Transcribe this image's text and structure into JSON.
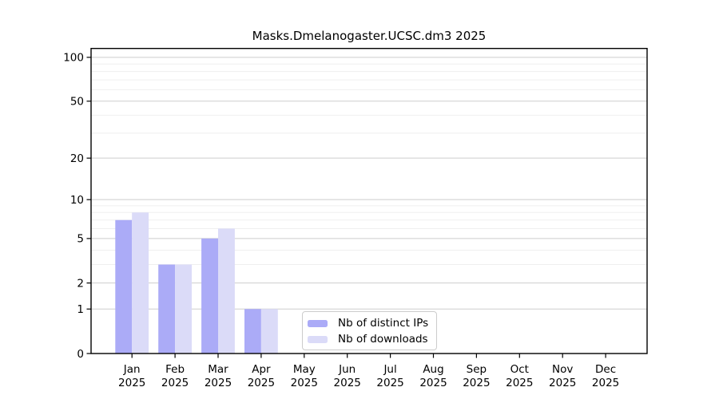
{
  "chart_data": {
    "type": "bar",
    "title": "Masks.Dmelanogaster.UCSC.dm3 2025",
    "categories": [
      "Jan",
      "Feb",
      "Mar",
      "Apr",
      "May",
      "Jun",
      "Jul",
      "Aug",
      "Sep",
      "Oct",
      "Nov",
      "Dec"
    ],
    "year_label": "2025",
    "series": [
      {
        "name": "Nb of distinct IPs",
        "color": "#ABABF7",
        "values": [
          7,
          3,
          5,
          1,
          0,
          0,
          0,
          0,
          0,
          0,
          0,
          0
        ]
      },
      {
        "name": "Nb of downloads",
        "color": "#DBDBF8",
        "values": [
          8,
          3,
          6,
          1,
          0,
          0,
          0,
          0,
          0,
          0,
          0,
          0
        ]
      }
    ],
    "xlabel": "",
    "ylabel": "",
    "y_scale": "log1p",
    "y_ticks": [
      0,
      1,
      2,
      5,
      10,
      20,
      50,
      100
    ],
    "y_minor_gridlines": [
      3,
      4,
      6,
      7,
      8,
      9,
      30,
      40,
      60,
      70,
      80,
      90
    ],
    "ylim": [
      0,
      115
    ],
    "grid": "horizontal",
    "legend_position": "bottom-center-inside",
    "colors": {
      "axis": "#000000",
      "text": "#000000",
      "major_grid": "#cdcdcd",
      "minor_grid": "#efefef",
      "background": "#ffffff",
      "legend_border": "#cccccc"
    }
  }
}
